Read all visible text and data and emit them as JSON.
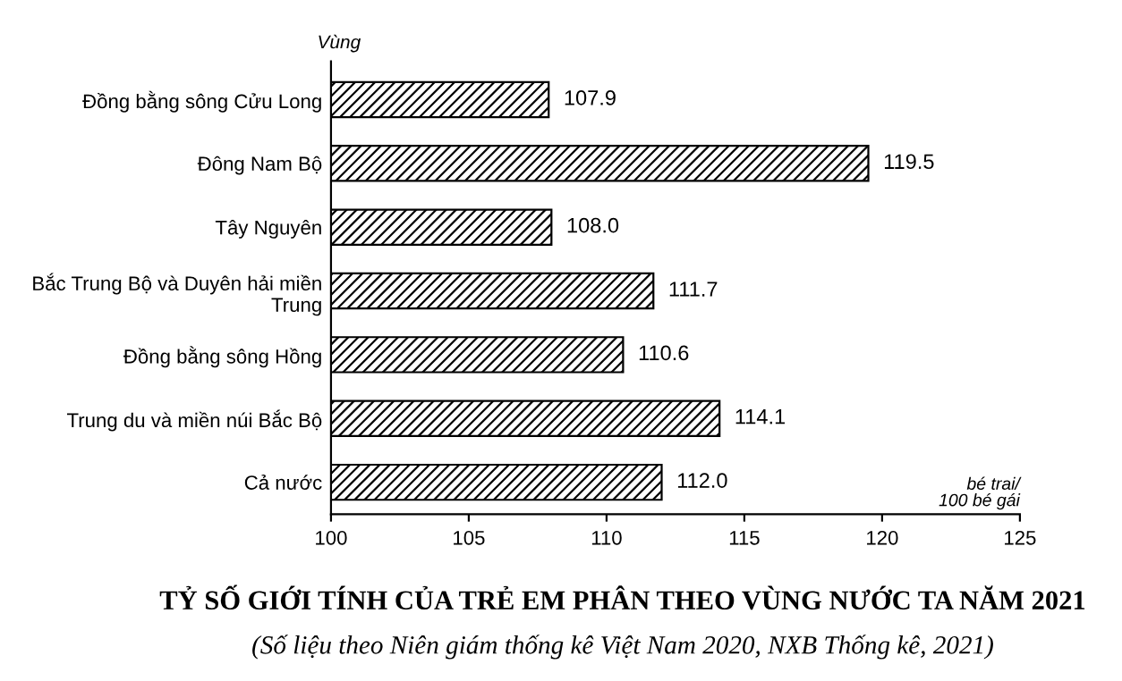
{
  "chart_data": {
    "type": "bar",
    "orientation": "horizontal",
    "title": "TỶ SỐ GIỚI TÍNH CỦA TRẺ EM PHÂN THEO VÙNG NƯỚC TA NĂM 2021",
    "subtitle": "(Số liệu theo Niên giám thống kê Việt Nam 2020, NXB Thống kê, 2021)",
    "xlabel": "bé trai/\n100 bé gái",
    "ylabel": "Vùng",
    "categories": [
      "Đồng bằng sông Cửu Long",
      "Đông Nam Bộ",
      "Tây Nguyên",
      "Bắc Trung Bộ và Duyên hải miền\nTrung",
      "Đồng bằng sông Hồng",
      "Trung du và miền núi Bắc Bộ",
      "Cả nước"
    ],
    "values": [
      107.9,
      119.5,
      108.0,
      111.7,
      110.6,
      114.1,
      112.0
    ],
    "value_labels": [
      "107.9",
      "119.5",
      "108.0",
      "111.7",
      "110.6",
      "114.1",
      "112.0"
    ],
    "color": "#000000",
    "xlim": [
      100,
      125
    ],
    "xticks": [
      100,
      105,
      110,
      115,
      120,
      125
    ],
    "grid": false,
    "legend": false
  }
}
